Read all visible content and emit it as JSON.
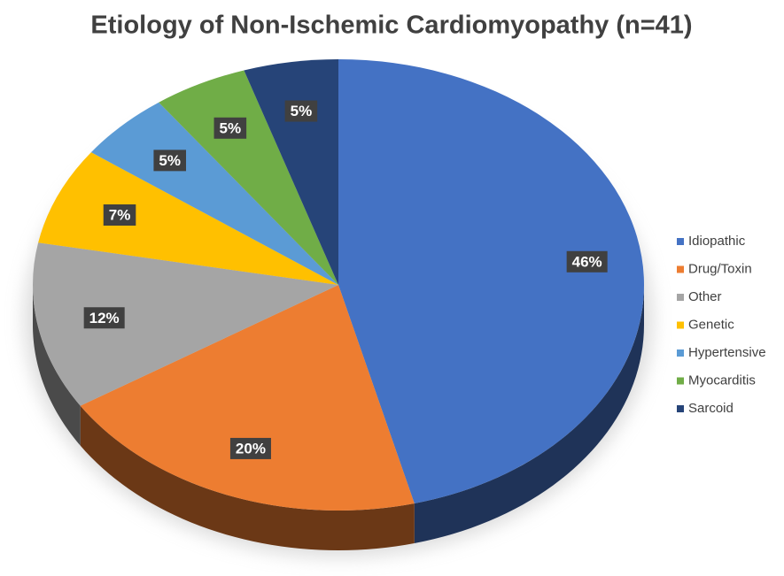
{
  "chart_data": {
    "type": "pie",
    "title": "Etiology of Non-Ischemic Cardiomyopathy (n=41)",
    "categories": [
      "Idiopathic",
      "Drug/Toxin",
      "Other",
      "Genetic",
      "Hypertensive",
      "Myocarditis",
      "Sarcoid"
    ],
    "values": [
      46,
      20,
      12,
      7,
      5,
      5,
      5
    ],
    "value_labels": [
      "46%",
      "20%",
      "12%",
      "7%",
      "5%",
      "5%",
      "5%"
    ],
    "colors": [
      "#4472c4",
      "#ed7d31",
      "#a5a5a5",
      "#ffc000",
      "#5b9bd5",
      "#70ad47",
      "#264478"
    ],
    "legend": "right"
  }
}
